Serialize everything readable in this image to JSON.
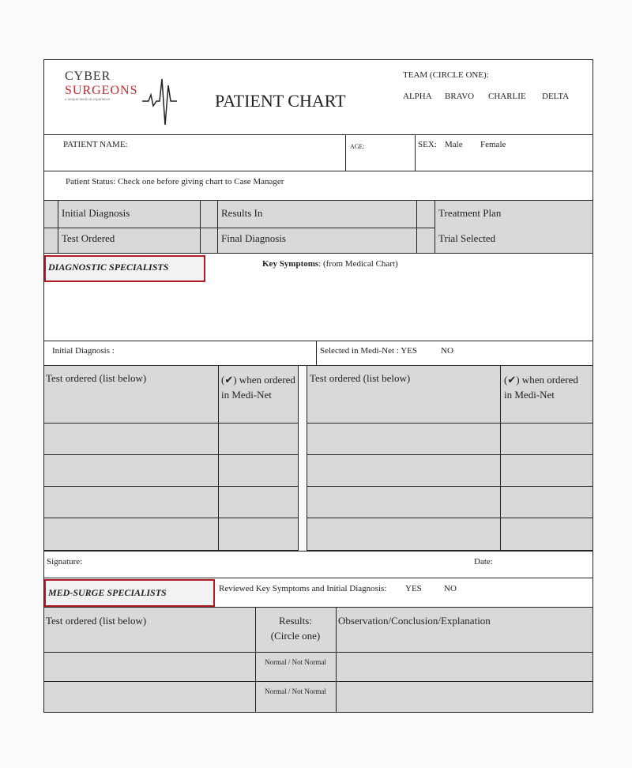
{
  "logo": {
    "line1": "CYBER",
    "line2": "SURGEONS",
    "tagline": "a unique medical experience"
  },
  "title": "PATIENT CHART",
  "team": {
    "label": "TEAM (CIRCLE ONE):",
    "options": [
      "ALPHA",
      "BRAVO",
      "CHARLIE",
      "DELTA"
    ]
  },
  "patient": {
    "name_label": "PATIENT  NAME:",
    "age_label": "AGE:",
    "sex_label": "SEX:",
    "sex_options": [
      "Male",
      "Female"
    ]
  },
  "status": {
    "label": "Patient Status:   Check one before giving chart to Case Manager",
    "options": [
      "Initial Diagnosis",
      "Results In",
      "Treatment Plan",
      "Test Ordered",
      "Final Diagnosis",
      "Trial Selected"
    ]
  },
  "diagnostic": {
    "title": "DIAGNOSTIC SPECIALISTS",
    "key_symptoms_bold": "Key Symptoms",
    "key_symptoms_rest": ": (from Medical Chart)",
    "initial_diagnosis": "Initial Diagnosis :",
    "selected": "Selected in Medi-Net :  YES",
    "selected_no": "NO",
    "col_test": "Test ordered (list below)",
    "col_check": "(✔) when  ordered in Medi-Net"
  },
  "signature": {
    "label": "Signature:",
    "date": "Date:"
  },
  "medsurge": {
    "title": "MED-SURGE SPECIALISTS",
    "reviewed": "Reviewed Key Symptoms and Initial Diagnosis:",
    "yes": "YES",
    "no": "NO",
    "col_test": "Test ordered (list below)",
    "col_results": "Results:",
    "col_results2": "(Circle one)",
    "col_obs": "Observation/Conclusion/Explanation",
    "normal": "Normal / Not Normal"
  }
}
